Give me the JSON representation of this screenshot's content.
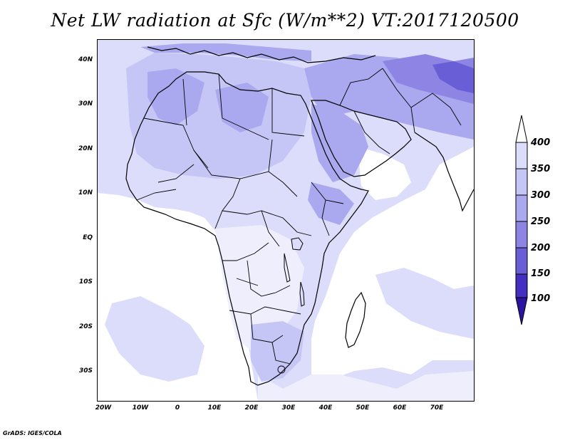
{
  "title": "Net LW radiation at Sfc (W/m**2) VT:2017120500",
  "credit": "GrADS: IGES/COLA",
  "lat_labels": [
    "40N",
    "30N",
    "20N",
    "10N",
    "EQ",
    "10S",
    "20S",
    "30S"
  ],
  "lon_labels": [
    "20W",
    "10W",
    "0",
    "10E",
    "20E",
    "30E",
    "40E",
    "50E",
    "60E",
    "70E"
  ],
  "colorbar": {
    "labels": [
      "400",
      "350",
      "300",
      "250",
      "200",
      "150",
      "100"
    ],
    "colors": [
      "#ffffff",
      "#dcdcfb",
      "#c6c6f6",
      "#aaa8ee",
      "#8d84e4",
      "#6a5ed6",
      "#4430c0",
      "#2a14a0"
    ]
  },
  "colors": {
    "ocean": "#ffffff",
    "land_base": "#dcdcfb",
    "land_cool": "#c6c6f6",
    "land_mid": "#aaa8ee",
    "land_dark": "#8d84e4",
    "land_darker": "#6a5ed6",
    "border": "#000000"
  }
}
